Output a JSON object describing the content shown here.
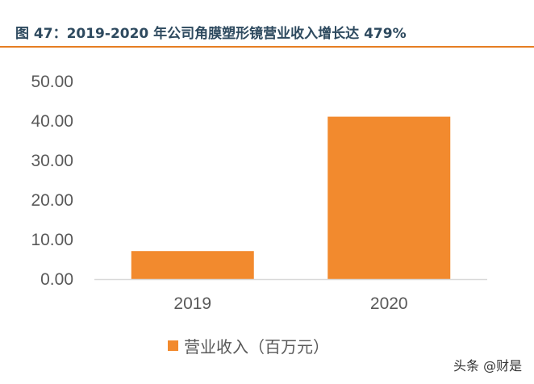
{
  "figure": {
    "title": "图 47：2019-2020 年公司角膜塑形镜营业收入增长达 479%"
  },
  "chart_data": {
    "type": "bar",
    "categories": [
      "2019",
      "2020"
    ],
    "series": [
      {
        "name": "营业收入（百万元）",
        "values": [
          7.1,
          41.1
        ],
        "color": "#f28a2e"
      }
    ],
    "ylim": [
      0,
      50
    ],
    "yticks": [
      "0.00",
      "10.00",
      "20.00",
      "30.00",
      "40.00",
      "50.00"
    ],
    "grid": false,
    "legend_position": "bottom"
  },
  "legend": {
    "label": "营业收入（百万元）"
  },
  "watermark": {
    "text": "头条 @财是"
  }
}
